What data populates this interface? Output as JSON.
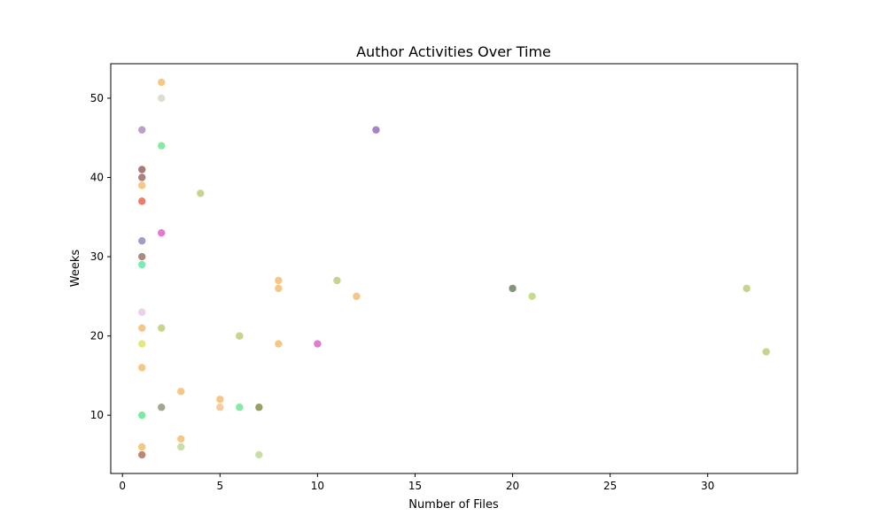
{
  "chart_data": {
    "type": "scatter",
    "title": "Author Activities Over Time",
    "xlabel": "Number of Files",
    "ylabel": "Weeks",
    "xlim": [
      -0.6,
      34.6
    ],
    "ylim": [
      2.65,
      54.35
    ],
    "xticks": [
      0,
      5,
      10,
      15,
      20,
      25,
      30
    ],
    "yticks": [
      10,
      20,
      30,
      40,
      50
    ],
    "grid": false,
    "legend": "none",
    "point_alpha": 0.6,
    "points": [
      {
        "x": 2,
        "y": 52,
        "color": "#f0a030"
      },
      {
        "x": 2,
        "y": 50,
        "color": "#c8c8b0"
      },
      {
        "x": 1,
        "y": 46,
        "color": "#8860a8"
      },
      {
        "x": 13,
        "y": 46,
        "color": "#7030a0"
      },
      {
        "x": 2,
        "y": 44,
        "color": "#30e060"
      },
      {
        "x": 1,
        "y": 41,
        "color": "#7a1e1e"
      },
      {
        "x": 1,
        "y": 40,
        "color": "#7a2a2a"
      },
      {
        "x": 1,
        "y": 39,
        "color": "#f0a030"
      },
      {
        "x": 4,
        "y": 38,
        "color": "#a0b840"
      },
      {
        "x": 1,
        "y": 37,
        "color": "#e02800"
      },
      {
        "x": 2,
        "y": 33,
        "color": "#d020b0"
      },
      {
        "x": 1,
        "y": 32,
        "color": "#6858a0"
      },
      {
        "x": 1,
        "y": 30,
        "color": "#704020"
      },
      {
        "x": 1,
        "y": 29,
        "color": "#20e080"
      },
      {
        "x": 8,
        "y": 27,
        "color": "#f0a030"
      },
      {
        "x": 11,
        "y": 27,
        "color": "#a0b840"
      },
      {
        "x": 8,
        "y": 26,
        "color": "#f0a030"
      },
      {
        "x": 20,
        "y": 26,
        "color": "#305020"
      },
      {
        "x": 32,
        "y": 26,
        "color": "#a0b840"
      },
      {
        "x": 12,
        "y": 25,
        "color": "#f0a030"
      },
      {
        "x": 21,
        "y": 25,
        "color": "#a0c840"
      },
      {
        "x": 1,
        "y": 23,
        "color": "#e0b0e0"
      },
      {
        "x": 1,
        "y": 21,
        "color": "#f0a030"
      },
      {
        "x": 2,
        "y": 21,
        "color": "#a0b840"
      },
      {
        "x": 6,
        "y": 20,
        "color": "#a0b840"
      },
      {
        "x": 1,
        "y": 19,
        "color": "#d0d820"
      },
      {
        "x": 8,
        "y": 19,
        "color": "#f0a030"
      },
      {
        "x": 10,
        "y": 19,
        "color": "#d020b0"
      },
      {
        "x": 33,
        "y": 18,
        "color": "#a0b840"
      },
      {
        "x": 1,
        "y": 16,
        "color": "#f0a030"
      },
      {
        "x": 3,
        "y": 13,
        "color": "#f0a030"
      },
      {
        "x": 5,
        "y": 12,
        "color": "#f0a030"
      },
      {
        "x": 2,
        "y": 11,
        "color": "#607040"
      },
      {
        "x": 5,
        "y": 11,
        "color": "#f4a860"
      },
      {
        "x": 6,
        "y": 11,
        "color": "#30e060"
      },
      {
        "x": 7,
        "y": 11,
        "color": "#506000"
      },
      {
        "x": 1,
        "y": 10,
        "color": "#20e060"
      },
      {
        "x": 3,
        "y": 7,
        "color": "#f0a030"
      },
      {
        "x": 1,
        "y": 6,
        "color": "#f0a030"
      },
      {
        "x": 3,
        "y": 6,
        "color": "#a8c870"
      },
      {
        "x": 1,
        "y": 5,
        "color": "#903818"
      },
      {
        "x": 7,
        "y": 5,
        "color": "#a8c870"
      }
    ]
  }
}
